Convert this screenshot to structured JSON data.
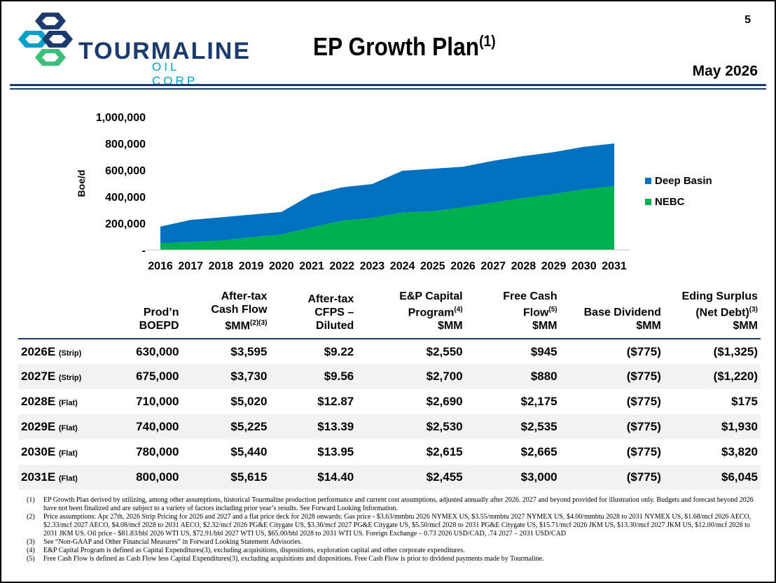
{
  "header": {
    "logo_word": "TOURMALINE",
    "logo_sub": "OIL CORP.",
    "title": "EP Growth Plan",
    "title_sup": "(1)",
    "page_number": "5",
    "date": "May 2026"
  },
  "colors": {
    "deep_basin": "#0070C0",
    "nebc": "#00B050",
    "rule": "#1b3a6e",
    "logo_dark": "#1b3a6e",
    "logo_teal": "#00a0c8",
    "logo_green": "#3dbf7a"
  },
  "chart_data": {
    "type": "area",
    "stacked": true,
    "x": [
      "2016",
      "2017",
      "2018",
      "2019",
      "2020",
      "2021",
      "2022",
      "2023",
      "2024",
      "2025",
      "2026",
      "2027",
      "2028",
      "2029",
      "2030",
      "2031"
    ],
    "series": [
      {
        "name": "NEBC",
        "color": "#00B050",
        "values": [
          50000,
          60000,
          70000,
          95000,
          115000,
          170000,
          220000,
          240000,
          280000,
          290000,
          320000,
          355000,
          390000,
          420000,
          455000,
          480000
        ]
      },
      {
        "name": "Deep Basin",
        "color": "#0070C0",
        "values": [
          125000,
          165000,
          175000,
          170000,
          170000,
          245000,
          250000,
          255000,
          315000,
          320000,
          305000,
          315000,
          315000,
          315000,
          320000,
          320000
        ]
      }
    ],
    "ylabel": "Boe/d",
    "ylim": [
      0,
      1000000
    ],
    "yticks": [
      "-",
      "200,000",
      "400,000",
      "600,000",
      "800,000",
      "1,000,000"
    ],
    "ytick_values": [
      0,
      200000,
      400000,
      600000,
      800000,
      1000000
    ],
    "legend": [
      "Deep Basin",
      "NEBC"
    ],
    "legend_position": "right",
    "grid": false
  },
  "table": {
    "headers": [
      {
        "lines": [
          "",
          "",
          ""
        ]
      },
      {
        "lines": [
          "",
          "Prod’n",
          "BOEPD"
        ]
      },
      {
        "lines": [
          "After-tax",
          "Cash Flow",
          "$MM"
        ],
        "sup": "(2)(3)"
      },
      {
        "lines": [
          "After-tax",
          "CFPS –",
          "Diluted"
        ]
      },
      {
        "lines": [
          "E&P Capital",
          "Program",
          "$MM"
        ],
        "sup_line2": "(4)"
      },
      {
        "lines": [
          "Free Cash",
          "Flow",
          "$MM"
        ],
        "sup_line2": "(5)"
      },
      {
        "lines": [
          "",
          "Base Dividend",
          "$MM"
        ]
      },
      {
        "lines": [
          "Eding Surplus",
          "(Net Debt)",
          "$MM"
        ],
        "sup_line2": "(3)"
      }
    ],
    "rows": [
      {
        "year": "2026E",
        "tag": "(Strip)",
        "cells": [
          "630,000",
          "$3,595",
          "$9.22",
          "$2,550",
          "$945",
          "($775)",
          "($1,325)"
        ]
      },
      {
        "year": "2027E",
        "tag": "(Strip)",
        "cells": [
          "675,000",
          "$3,730",
          "$9.56",
          "$2,700",
          "$880",
          "($775)",
          "($1,220)"
        ]
      },
      {
        "year": "2028E",
        "tag": "(Flat)",
        "cells": [
          "710,000",
          "$5,020",
          "$12.87",
          "$2,690",
          "$2,175",
          "($775)",
          "$175"
        ]
      },
      {
        "year": "2029E",
        "tag": "(Flat)",
        "cells": [
          "740,000",
          "$5,225",
          "$13.39",
          "$2,530",
          "$2,535",
          "($775)",
          "$1,930"
        ]
      },
      {
        "year": "2030E",
        "tag": "(Flat)",
        "cells": [
          "780,000",
          "$5,440",
          "$13.95",
          "$2,615",
          "$2,665",
          "($775)",
          "$3,820"
        ]
      },
      {
        "year": "2031E",
        "tag": "(Flat)",
        "cells": [
          "800,000",
          "$5,615",
          "$14.40",
          "$2,455",
          "$3,000",
          "($775)",
          "$6,045"
        ]
      }
    ]
  },
  "footnotes": [
    {
      "n": "(1)",
      "text": "EP Growth Plan derived by utilizing, among other assumptions, historical Tourmaline production performance and current cost assumptions, adjusted annually after 2026. 2027 and beyond provided for illustration only.  Budgets and forecast beyond 2026 have not been finalized and are subject to a variety of factors including prior year’s results.  See Forward Looking Information."
    },
    {
      "n": "(2)",
      "text": "Price assumptions: Apr 27th, 2026 Strip Pricing for 2026 and 2027 and a flat price deck for 2028 onwards: Gas price - $3.63/mmbtu 2026 NYMEX US, $3.55/mmbtu 2027 NYMEX US, $4.00/mmbtu 2028 to 2031 NYMEX US, $1.68/mcf 2026 AECO, $2.33/mcf 2027 AECO, $4.08/mcf 2028 to 2031 AECO, $2.32/mcf 2026 PG&E Citygate US, $3.36/mcf 2027 PG&E Citygate US, $5.50/mcf 2028 to 2031 PG&E Citygate US, $15.71/mcf 2026 JKM US, $13.30/mcf 2027 JKM US, $12.00/mcf 2028 to 2031 JKM US. Oil price - $81.83/bbl 2026 WTI US, $72.91/bbl 2027 WTI US, $65.00/bbl 2028 to 2031 WTI US.  Foreign Exchange – 0.73 2026 USD/CAD, .74 2027 – 2031 USD/CAD"
    },
    {
      "n": "(3)",
      "text": "See “Non-GAAP and Other Financial Measures” in Forward Looking Statement Advisories."
    },
    {
      "n": "(4)",
      "text": "E&P Capital Program is defined as Capital Expenditures(3), excluding acquisitions, dispositions, exploration capital and other corporate expenditures."
    },
    {
      "n": "(5)",
      "text": "Free Cash Flow is defined as Cash Flow less Capital Expenditures(3), excluding acquisitions and dispositions.  Free Cash Flow is prior to dividend payments made by Tourmaline."
    }
  ]
}
